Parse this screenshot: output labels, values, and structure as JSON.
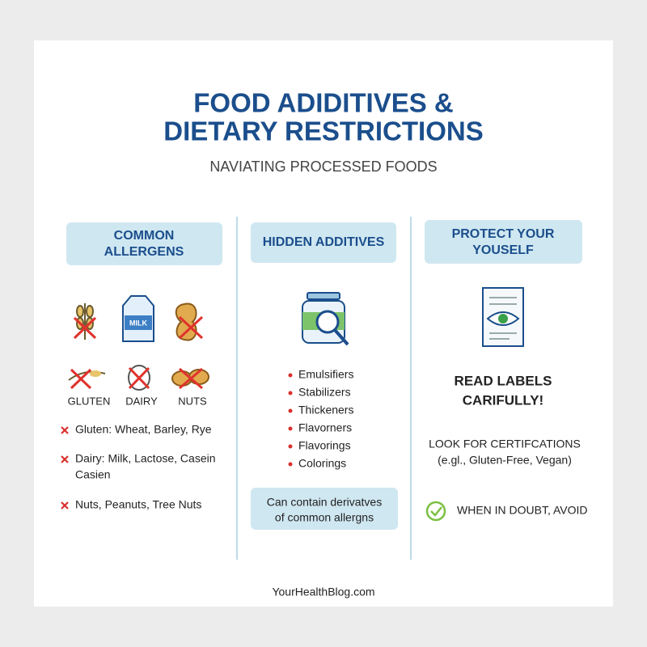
{
  "header": {
    "title_lines": [
      "FOOD ADIDITIVES &",
      "DIETARY RESTRICTIONS"
    ],
    "subtitle": "NAVIATING PROCESSED FOODS"
  },
  "columns": [
    {
      "heading_lines": [
        "COMMON",
        "ALLERGENS"
      ],
      "carton_label": "MILK",
      "icon_labels": [
        "GLUTEN",
        "DAIRY",
        "NUTS"
      ],
      "items": [
        [
          "Gluten: Wheat, Barley, Rye"
        ],
        [
          "Dairy: Milk, Lactose, Casein",
          "Casien"
        ],
        [
          "Nuts, Peanuts, Tree Nuts"
        ]
      ]
    },
    {
      "heading_lines": [
        "HIDDEN ADDITIVES"
      ],
      "items": [
        "Emulsifiers",
        "Stabilizers",
        "Thickeners",
        "Flavorners",
        "Flavorings",
        "Colorings"
      ],
      "note_lines": [
        "Can contain derivatves",
        "of common allergns"
      ]
    },
    {
      "heading_lines": [
        "PROTECT YOUR",
        "YOUSELF"
      ],
      "callout_lines": [
        "READ LABELS",
        "CARIFULLY!"
      ],
      "cert_lines": [
        "LOOK FOR CERTIFCATIONS",
        "(e.gl., Gluten-Free, Vegan)"
      ],
      "tip": "WHEN IN DOUBT, AVOID"
    }
  ],
  "footer": "YourHealthBlog.com"
}
